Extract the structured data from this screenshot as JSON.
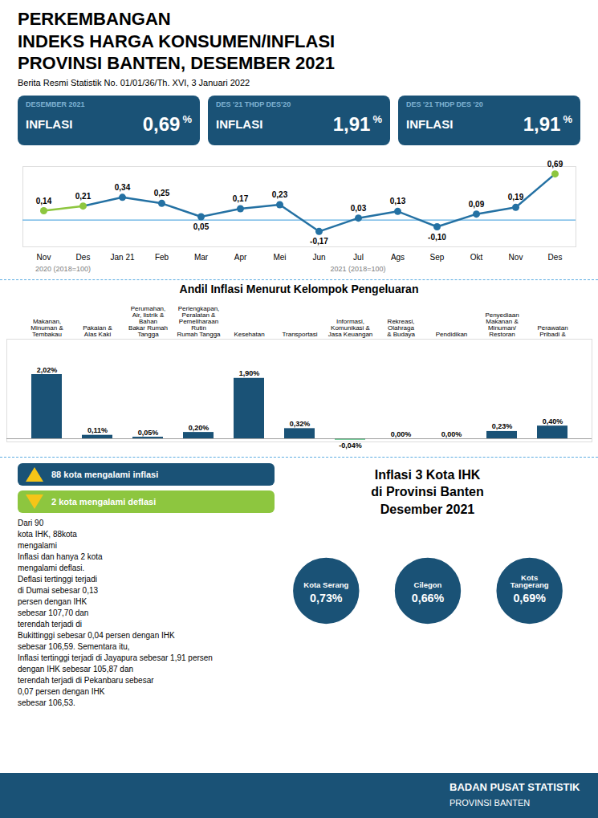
{
  "chart_data": [
    {
      "type": "line",
      "title": "PERKEMBANGAN\nINDEKS HARGA KONSUMEN/INFLASI\nPROVINSI BANTEN, DESEMBER 2021",
      "subtitle": "Berita Resmi Statistik No. 01/01/36/Th. XVI, 3 Januari 2022",
      "categories": [
        "Nov",
        "Des",
        "Jan 21",
        "Feb",
        "Mar",
        "Apr",
        "Mei",
        "Jun",
        "Jul",
        "Ags",
        "Sep",
        "Okt",
        "Nov",
        "Des"
      ],
      "values": [
        0.14,
        0.21,
        0.34,
        0.25,
        0.05,
        0.17,
        0.23,
        -0.17,
        0.03,
        0.13,
        -0.1,
        0.09,
        0.19,
        0.69
      ],
      "value_labels": [
        "0,14",
        "0,21",
        "0,34",
        "0,25",
        "0,05",
        "0,17",
        "0,23",
        "-0,17",
        "0,03",
        "0,13",
        "-0,10",
        "0,09",
        "0,19",
        "0,69"
      ],
      "data_labels": true,
      "color": "#2471a3",
      "colors": [
        "#8DC63F",
        "#8DC63F",
        "#2471a3",
        "#2471a3",
        "#2471a3",
        "#2471a3",
        "#2471a3",
        "#2471a3",
        "#2471a3",
        "#2471a3",
        "#2471a3",
        "#2471a3",
        "#2471a3",
        "#8DC63F"
      ],
      "marker": "circle",
      "ylim": [
        -0.4,
        0.8
      ],
      "tick_labels": "x",
      "annotations": [
        "DESEMBER 2021",
        "INFLASI",
        "0,69",
        "%",
        "DES '21 THDP DES'20",
        "INFLASI",
        "1,91",
        "%",
        "DES '21 THDP DES '20",
        "INFLASI",
        "1,91",
        "%",
        "2020 (2018=100)",
        "2021 (2018=100)"
      ]
    },
    {
      "type": "bar",
      "title": "Andil Inflasi Menurut Kelompok Pengeluaran",
      "categories": [
        "Makanan,\nMinuman &\nTembakau",
        "Pakaian &\nAlas Kaki",
        "Perumahan,\nAir, listrik &\nBahan\nBakar Rumah\nTangga",
        "Perlengkapan,\nPeralatan &\nPemeliharaan\nRutin\nRumah Tangga",
        "Kesehatan",
        "Transportasi",
        "Informasi,\nKomunikasi &\nJasa Keuangan",
        "Rekreasi,\nOlahraga\n& Budaya",
        "Pendidikan",
        "Penyediaan\nMakanan &\nMinuman/\nRestoran",
        "Perawatan\nPribadi &"
      ],
      "values": [
        2.02,
        0.11,
        0.05,
        0.2,
        1.9,
        0.32,
        -0.04,
        0.0,
        0.0,
        0.23,
        0.4
      ],
      "value_labels": [
        "2,02%",
        "0,11%",
        "0,05%",
        "0,20%",
        "1,90%",
        "0,32%",
        "-0,04%",
        "0,00%",
        "0,00%",
        "0,23%",
        "0,40%"
      ],
      "data_labels": true,
      "colors": [
        "#1a5276",
        "#1a5276",
        "#1a5276",
        "#1a5276",
        "#1a5276",
        "#1a5276",
        "#27ae60",
        "#1a5276",
        "#1a5276",
        "#1a5276",
        "#1a5276"
      ],
      "ylim": [
        -0.1,
        3.131
      ],
      "tick_labels": "x"
    },
    {
      "type": "map",
      "title": "Inflasi 3 Kota IHK\ndi Provinsi Banten\nDesember 2021",
      "categories": [
        "Kota Serang",
        "Cilegon",
        "Kots\nTangerang"
      ],
      "values": [
        0.73,
        0.66,
        0.69
      ],
      "value_labels": [
        "0,73%",
        "0,66%",
        "0,69%"
      ],
      "data_labels": true,
      "color": "#1a5276",
      "annotations": [
        "88 kota mengalami inflasi",
        "2 kota mengalami deflasi",
        "Dari 90\nkota IHK, 88kota\nmengalami\nInflasi dan hanya 2 kota\nmengalami deflasi.\nDeflasi tertinggi terjadi\ndi Dumai sebesar 0,13\npersen dengan IHK\nsebesar 107,70 dan\nterendah terjadi di\nBukittinggi sebesar 0,04 persen dengan IHK\nsebesar 106,59. Sementara itu,\nInflasi tertinggi terjadi di Jayapura sebesar 1,91 persen\ndengan IHK sebesar 105,87 dan\nterendah terjadi di Pekanbaru sebesar\n0,07 persen dengan IHK\nsebesar 106,53.",
        "BADAN PUSAT STATISTIK",
        "PROVINSI BANTEN"
      ]
    }
  ]
}
